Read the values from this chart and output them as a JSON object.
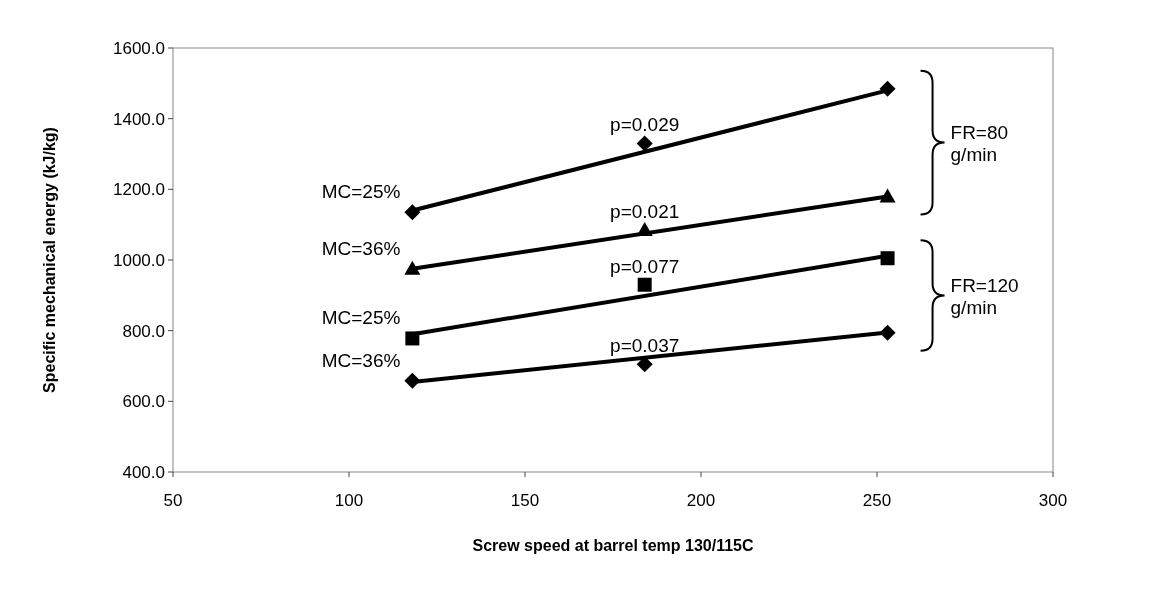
{
  "chart_data": {
    "type": "scatter",
    "xlabel": "Screw speed at barrel temp 130/115C",
    "ylabel": "Specific mechanical energy (kJ/kg)",
    "xlim": [
      50,
      300
    ],
    "xticks": [
      50,
      100,
      150,
      200,
      250,
      300
    ],
    "ylim": [
      400,
      1600
    ],
    "yticks": [
      {
        "value": 400,
        "label": "400.0"
      },
      {
        "value": 600,
        "label": "600.0"
      },
      {
        "value": 800,
        "label": "800.0"
      },
      {
        "value": 1000,
        "label": "1000.0"
      },
      {
        "value": 1200,
        "label": "1200.0"
      },
      {
        "value": 1400,
        "label": "1400.0"
      },
      {
        "value": 1600,
        "label": "1600.0"
      }
    ],
    "grid": false,
    "series": [
      {
        "color": "#000000",
        "marker": "diamond",
        "x": [
          118,
          184,
          253
        ],
        "values": [
          1135,
          1330,
          1485
        ]
      },
      {
        "color": "#000000",
        "marker": "triangle",
        "x": [
          118,
          184,
          253
        ],
        "values": [
          975,
          1085,
          1180
        ]
      },
      {
        "color": "#000000",
        "marker": "square",
        "x": [
          118,
          184,
          253
        ],
        "values": [
          778,
          930,
          1005
        ]
      },
      {
        "color": "#000000",
        "marker": "diamond",
        "x": [
          118,
          184,
          253
        ],
        "values": [
          658,
          705,
          794
        ]
      },
      {
        "type": "line",
        "color": "#000000",
        "marker": "none",
        "x": [
          118,
          253
        ],
        "values": [
          1140,
          1480
        ]
      },
      {
        "type": "line",
        "color": "#000000",
        "marker": "none",
        "x": [
          118,
          253
        ],
        "values": [
          975,
          1180
        ]
      },
      {
        "type": "line",
        "color": "#000000",
        "marker": "none",
        "x": [
          118,
          253
        ],
        "values": [
          790,
          1012
        ]
      },
      {
        "type": "line",
        "color": "#000000",
        "marker": "none",
        "x": [
          118,
          253
        ],
        "values": [
          655,
          795
        ]
      }
    ],
    "annotations": [
      "MC=25%",
      "MC=36%",
      "MC=25%",
      "MC=36%",
      "p=0.029",
      "p=0.021",
      "p=0.077",
      "p=0.037",
      "FR=80 g/min",
      "FR=120 g/min"
    ]
  }
}
